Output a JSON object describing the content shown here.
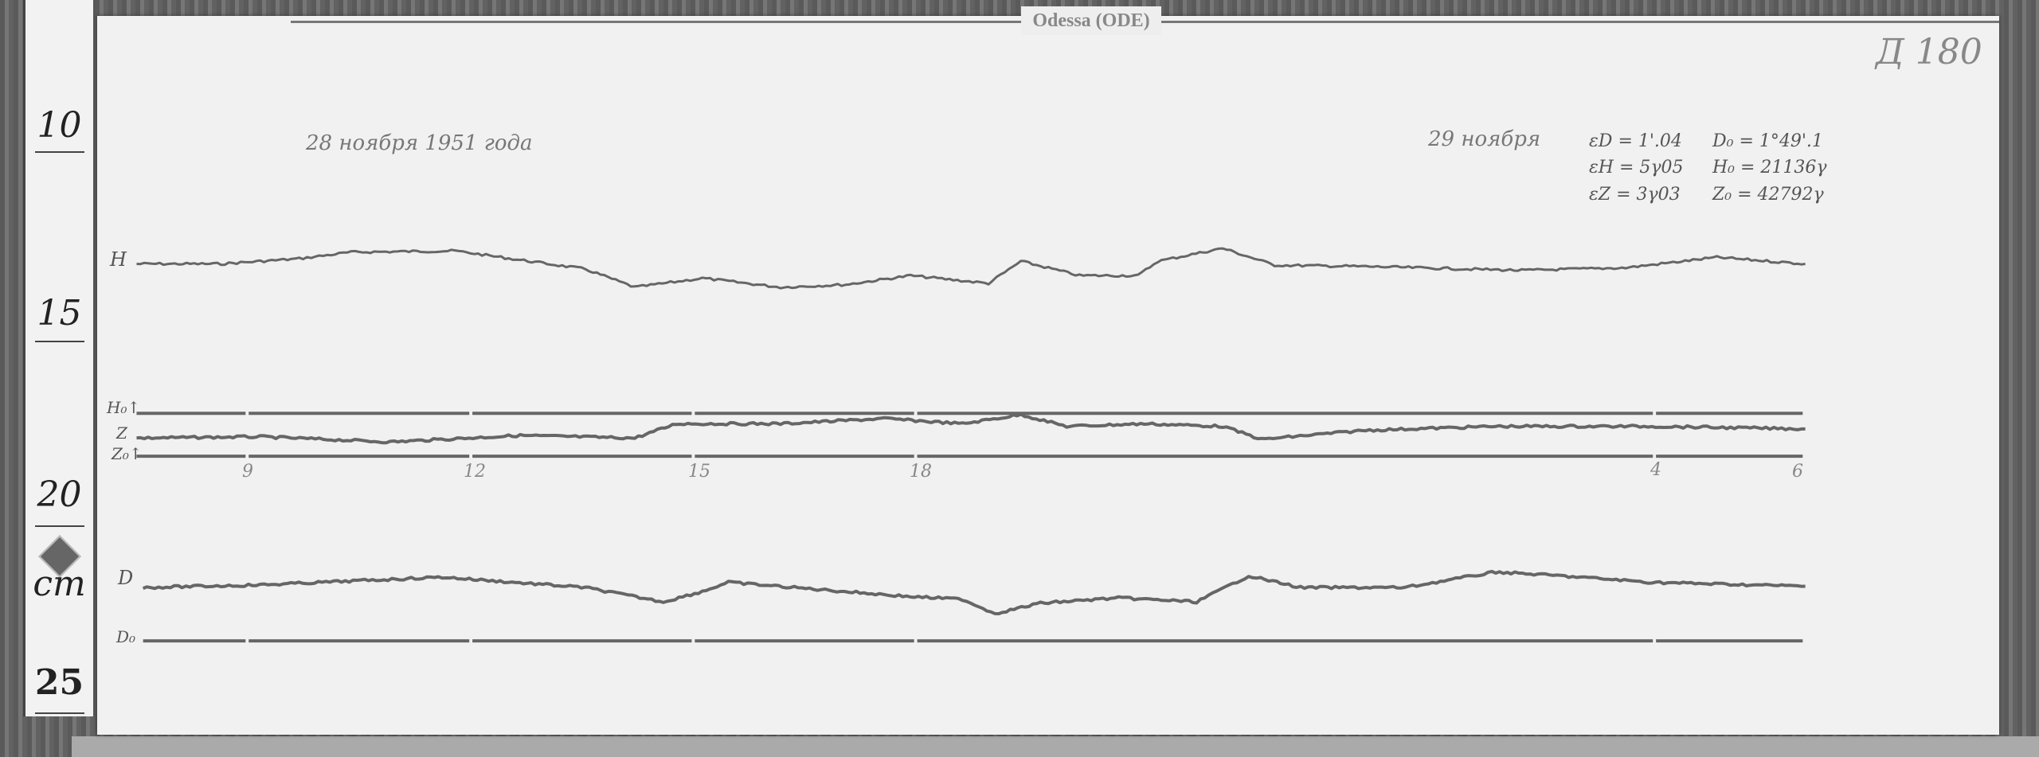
{
  "station_label": "Odessa (ODE)",
  "sheet_number": "Д 180",
  "date_start": "28 ноября 1951 года",
  "date_next": "29 ноября",
  "constants": {
    "eD": "εD = 1'.04",
    "eH": "εH = 5γ05",
    "eZ": "εZ = 3γ03",
    "D0": "D₀ = 1°49'.1",
    "H0": "H₀ = 21136γ",
    "Z0": "Z₀ = 42792γ"
  },
  "trace_labels": {
    "H": "H",
    "Ho": "H₀↑",
    "Z": "Z",
    "Zo": "Z₀↑",
    "D": "D",
    "Do": "D₀"
  },
  "hour_marks": [
    "9",
    "12",
    "15",
    "18",
    "4",
    "6"
  ],
  "ruler": {
    "marks": [
      "10",
      "15",
      "20",
      "25"
    ],
    "unit": "cm"
  },
  "colors": {
    "trace": "#666666",
    "paper": "#f1f1f1"
  }
}
